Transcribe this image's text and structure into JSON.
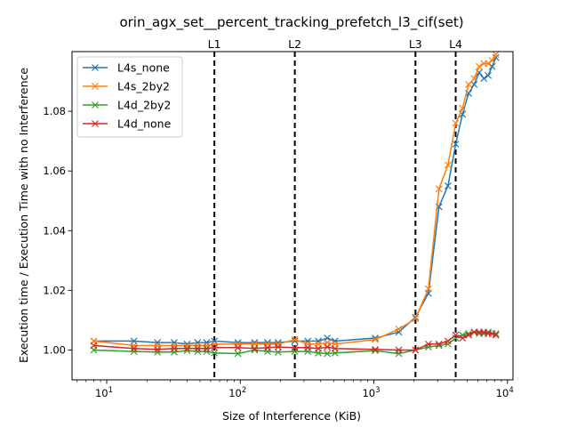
{
  "chart_data": {
    "type": "line",
    "title": "orin_agx_set__percent_tracking_prefetch_l3_cif(set)",
    "xlabel": "Size of Interference (KiB)",
    "ylabel": "Execution time / Execution Time with no Interference",
    "xscale": "log",
    "xlim": [
      5.5,
      11000
    ],
    "ylim": [
      0.99,
      1.1
    ],
    "xticks": [
      {
        "value": 10,
        "label": "10",
        "sup": "1"
      },
      {
        "value": 100,
        "label": "10",
        "sup": "2"
      },
      {
        "value": 1000,
        "label": "10",
        "sup": "3"
      },
      {
        "value": 10000,
        "label": "10",
        "sup": "4"
      }
    ],
    "yticks": [
      {
        "value": 1.0,
        "label": "1.00"
      },
      {
        "value": 1.02,
        "label": "1.02"
      },
      {
        "value": 1.04,
        "label": "1.04"
      },
      {
        "value": 1.06,
        "label": "1.06"
      },
      {
        "value": 1.08,
        "label": "1.08"
      }
    ],
    "grid": false,
    "legend_position": "top-left",
    "vlines": [
      {
        "label": "L1",
        "x": 64
      },
      {
        "label": "L2",
        "x": 256
      },
      {
        "label": "L3",
        "x": 2048
      },
      {
        "label": "L4",
        "x": 4096
      }
    ],
    "series": [
      {
        "name": "L4s_none",
        "color": "#1f77b4",
        "x": [
          8,
          16,
          24,
          32,
          40,
          48,
          56,
          64,
          96,
          128,
          160,
          192,
          256,
          320,
          384,
          448,
          512,
          1024,
          1536,
          2048,
          2560,
          3072,
          3584,
          4096,
          4608,
          5120,
          5632,
          6144,
          6656,
          7168,
          7680,
          8192
        ],
        "y": [
          1.003,
          1.003,
          1.0025,
          1.0025,
          1.002,
          1.0025,
          1.0025,
          1.003,
          1.0025,
          1.0025,
          1.0025,
          1.0025,
          1.003,
          1.003,
          1.003,
          1.004,
          1.003,
          1.004,
          1.006,
          1.011,
          1.019,
          1.048,
          1.055,
          1.069,
          1.079,
          1.086,
          1.089,
          1.093,
          1.091,
          1.092,
          1.095,
          1.098
        ]
      },
      {
        "name": "L4s_2by2",
        "color": "#ff7f0e",
        "x": [
          8,
          16,
          24,
          32,
          40,
          48,
          56,
          64,
          96,
          128,
          160,
          192,
          256,
          320,
          384,
          448,
          512,
          1024,
          1536,
          2048,
          2560,
          3072,
          3584,
          4096,
          4608,
          5120,
          5632,
          6144,
          6656,
          7168,
          7680,
          8192
        ],
        "y": [
          1.003,
          1.0015,
          1.0015,
          1.0015,
          1.0015,
          1.0015,
          1.0015,
          1.002,
          1.002,
          1.002,
          1.002,
          1.002,
          1.0035,
          1.002,
          1.002,
          1.0025,
          1.002,
          1.0035,
          1.007,
          1.0105,
          1.0205,
          1.054,
          1.062,
          1.076,
          1.081,
          1.089,
          1.091,
          1.095,
          1.096,
          1.096,
          1.097,
          1.099
        ]
      },
      {
        "name": "L4d_2by2",
        "color": "#2ca02c",
        "x": [
          8,
          16,
          24,
          32,
          40,
          48,
          56,
          64,
          96,
          128,
          160,
          192,
          256,
          320,
          384,
          448,
          512,
          1024,
          1536,
          2048,
          2560,
          3072,
          3584,
          4096,
          4608,
          5120,
          5632,
          6144,
          6656,
          7168,
          7680,
          8192
        ],
        "y": [
          1.0,
          0.9995,
          0.9993,
          0.9993,
          0.9998,
          0.9995,
          0.9995,
          0.999,
          0.9988,
          1.0,
          0.9995,
          0.9993,
          0.9995,
          0.9995,
          0.999,
          0.9988,
          0.999,
          0.9998,
          0.9988,
          1.0,
          1.001,
          1.0015,
          1.002,
          1.004,
          1.005,
          1.0055,
          1.006,
          1.0055,
          1.0055,
          1.006,
          1.0055,
          1.0055
        ]
      },
      {
        "name": "L4d_none",
        "color": "#d62728",
        "x": [
          8,
          16,
          24,
          32,
          40,
          48,
          56,
          64,
          96,
          128,
          160,
          192,
          256,
          320,
          384,
          448,
          512,
          1024,
          1536,
          2048,
          2560,
          3072,
          3584,
          4096,
          4608,
          5120,
          5632,
          6144,
          6656,
          7168,
          7680,
          8192
        ],
        "y": [
          1.0015,
          1.0005,
          1.0002,
          1.0005,
          1.0005,
          1.0005,
          1.0005,
          1.0008,
          1.0008,
          1.0005,
          1.0008,
          1.001,
          1.0008,
          1.0008,
          1.0005,
          1.001,
          1.0005,
          1.0002,
          1.0,
          1.0,
          1.002,
          1.002,
          1.003,
          1.005,
          1.004,
          1.005,
          1.006,
          1.006,
          1.006,
          1.0055,
          1.0055,
          1.005
        ]
      }
    ]
  }
}
